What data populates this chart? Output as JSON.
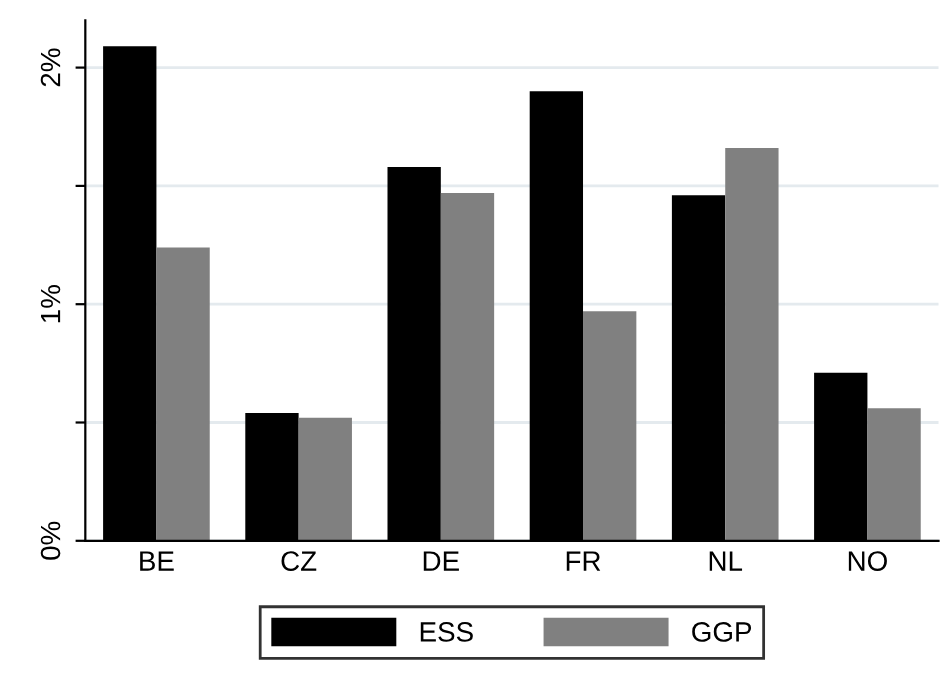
{
  "chart_data": {
    "type": "bar",
    "categories": [
      "BE",
      "CZ",
      "DE",
      "FR",
      "NL",
      "NO"
    ],
    "series": [
      {
        "name": "ESS",
        "color": "#000000",
        "values": [
          2.09,
          0.54,
          1.58,
          1.9,
          1.46,
          0.71
        ]
      },
      {
        "name": "GGP",
        "color": "#808080",
        "values": [
          1.24,
          0.52,
          1.47,
          0.97,
          1.66,
          0.56
        ]
      }
    ],
    "ylim": [
      0,
      2.2
    ],
    "yticks": [
      {
        "value": 0,
        "label": "0%"
      },
      {
        "value": 0.5,
        "label": null
      },
      {
        "value": 1,
        "label": "1%"
      },
      {
        "value": 1.5,
        "label": null
      },
      {
        "value": 2,
        "label": "2%"
      }
    ],
    "grid": "y",
    "legend": "bottom"
  }
}
